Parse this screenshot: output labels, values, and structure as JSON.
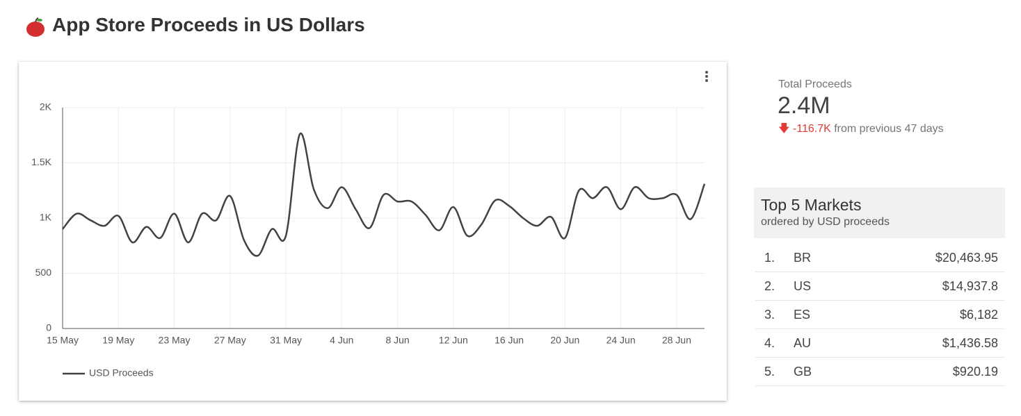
{
  "header": {
    "title": "App Store Proceeds in US Dollars"
  },
  "chart_data": {
    "type": "line",
    "categories": [
      "15 May",
      null,
      null,
      null,
      "19 May",
      null,
      null,
      null,
      "23 May",
      null,
      null,
      null,
      "27 May",
      null,
      null,
      null,
      "31 May",
      null,
      null,
      null,
      "4 Jun",
      null,
      null,
      null,
      "8 Jun",
      null,
      null,
      null,
      "12 Jun",
      null,
      null,
      null,
      "16 Jun",
      null,
      null,
      null,
      "20 Jun",
      null,
      null,
      null,
      "24 Jun",
      null,
      null,
      null,
      "28 Jun",
      null,
      null
    ],
    "series": [
      {
        "name": "USD Proceeds",
        "color": "#424242",
        "values": [
          900,
          1040,
          980,
          930,
          1020,
          780,
          920,
          820,
          1040,
          780,
          1040,
          980,
          1200,
          800,
          660,
          900,
          840,
          1760,
          1260,
          1090,
          1280,
          1080,
          910,
          1210,
          1150,
          1150,
          1030,
          890,
          1100,
          840,
          940,
          1160,
          1110,
          1000,
          930,
          1010,
          820,
          1250,
          1180,
          1280,
          1080,
          1280,
          1180,
          1180,
          1210,
          990,
          1310
        ]
      }
    ],
    "ylim": [
      0,
      2000
    ],
    "yticks": [
      0,
      500,
      {
        "value": 1000,
        "label": "1K"
      },
      {
        "value": 1500,
        "label": "1.5K"
      },
      {
        "value": 2000,
        "label": "2K"
      }
    ],
    "grid": true
  },
  "scorecard": {
    "label": "Total Proceeds",
    "value": "2.4M",
    "change": "-116.7K",
    "comparison": "from previous 47 days"
  },
  "table": {
    "title": "Top 5 Markets",
    "subtitle": "ordered by USD proceeds",
    "rows": [
      [
        "1.",
        "BR",
        "$20,463.95"
      ],
      [
        "2.",
        "US",
        "$14,937.8"
      ],
      [
        "3.",
        "ES",
        "$6,182"
      ],
      [
        "4.",
        "AU",
        "$1,436.58"
      ],
      [
        "5.",
        "GB",
        "$920.19"
      ]
    ]
  }
}
